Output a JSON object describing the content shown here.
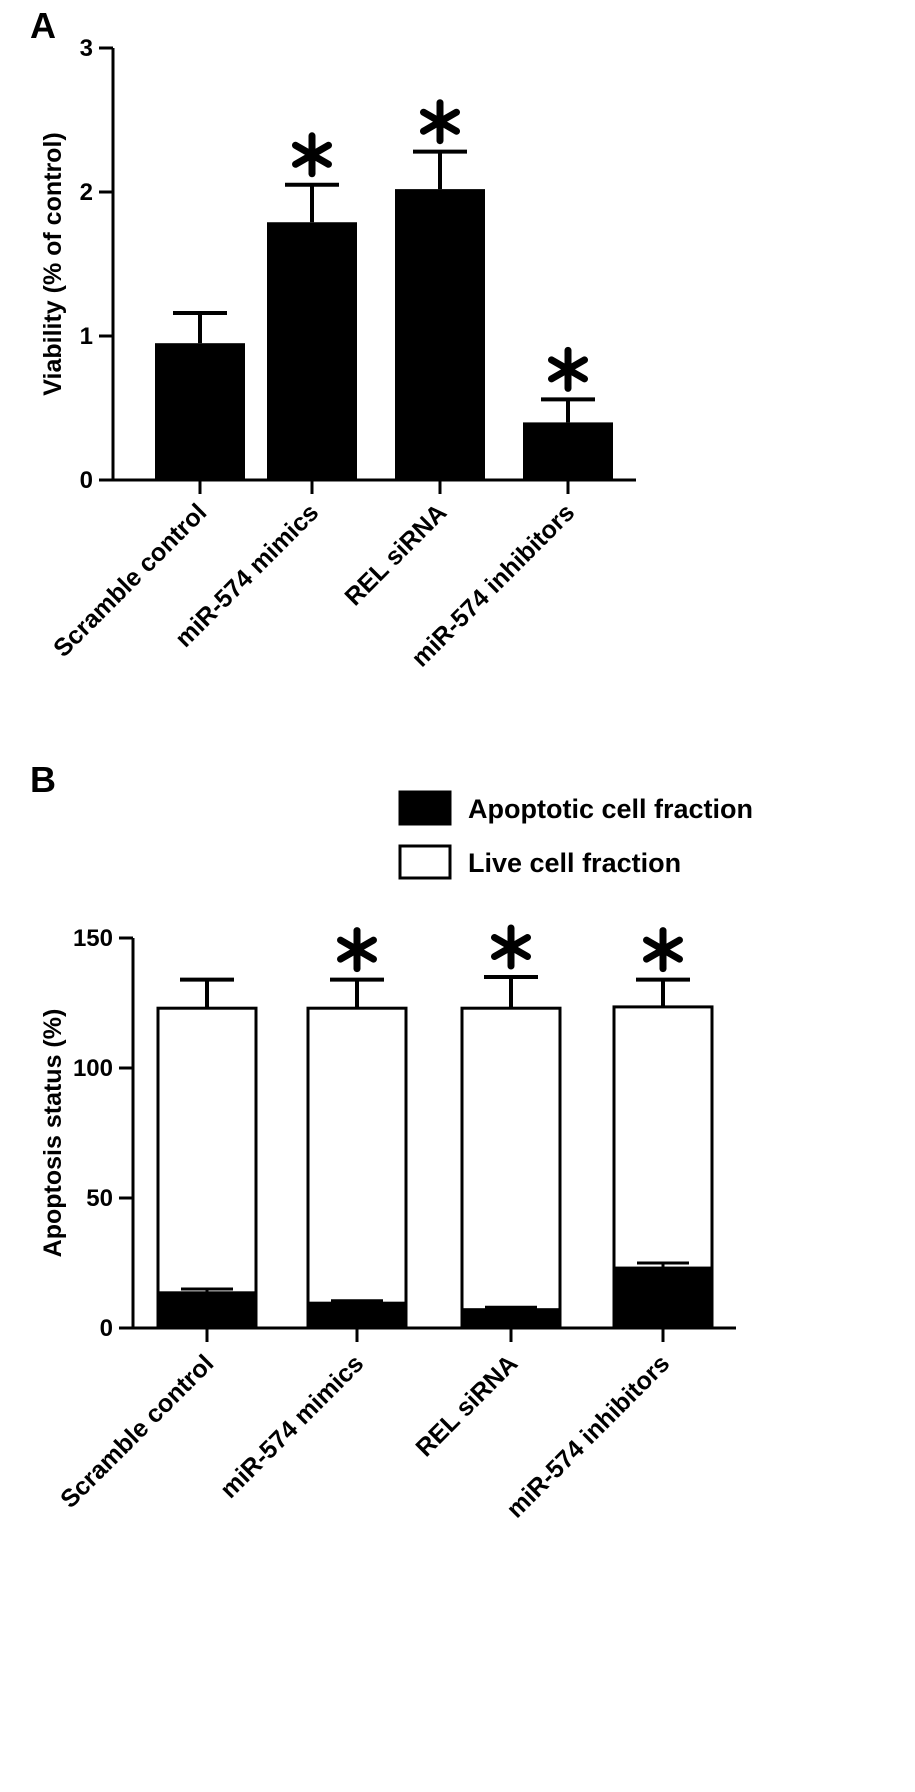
{
  "colors": {
    "ink": "#000000",
    "background": "#ffffff",
    "live_fill": "#ffffff",
    "apoptotic_fill": "#000000"
  },
  "chart_data": [
    {
      "panel_label": "A",
      "type": "bar",
      "ylabel": "Viability (% of control)",
      "ylim": [
        0,
        3
      ],
      "yticks": [
        0,
        1,
        2,
        3
      ],
      "categories": [
        "Scramble control",
        "miR-574 mimics",
        "REL siRNA",
        "miR-574 inhibitors"
      ],
      "values": [
        0.95,
        1.79,
        2.02,
        0.4
      ],
      "errors": [
        0.21,
        0.26,
        0.26,
        0.16
      ],
      "significance": [
        "",
        "*",
        "*",
        "*"
      ]
    },
    {
      "panel_label": "B",
      "type": "bar",
      "stacked": true,
      "ylabel": "Apoptosis status (%)",
      "ylim": [
        0,
        150
      ],
      "yticks": [
        0,
        50,
        100,
        150
      ],
      "categories": [
        "Scramble control",
        "miR-574 mimics",
        "REL siRNA",
        "miR-574 inhibitors"
      ],
      "legend": [
        "Apoptotic cell fraction",
        "Live cell fraction"
      ],
      "legend_position": "top-right",
      "series": [
        {
          "name": "Apoptotic cell fraction",
          "values": [
            13.5,
            9.5,
            7,
            23
          ],
          "errors": [
            1.5,
            1,
            1,
            2
          ]
        },
        {
          "name": "Live cell fraction",
          "values": [
            109.5,
            113.5,
            116,
            100.5
          ],
          "errors": [
            11,
            11,
            12,
            10.5
          ]
        }
      ],
      "significance": [
        "",
        "*",
        "*",
        "*"
      ]
    }
  ]
}
